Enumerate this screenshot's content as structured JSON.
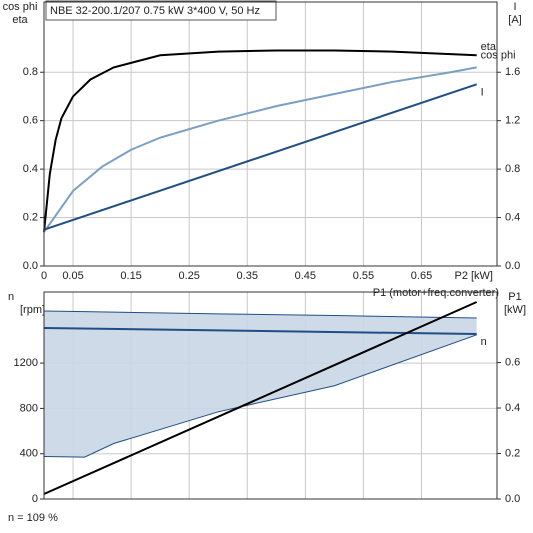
{
  "chart_data": [
    {
      "type": "line",
      "title": "NBE 32-200.1/207   0.75 kW   3*400 V, 50 Hz",
      "ylabel": [
        "cos phi",
        "eta"
      ],
      "y2label": [
        "I",
        "[A]"
      ],
      "xlabel": "P2 [kW]",
      "xlim": [
        0,
        0.78
      ],
      "xticks": [
        0,
        0.05,
        0.15,
        0.25,
        0.35,
        0.45,
        0.55,
        0.65
      ],
      "ylim": [
        0,
        1.09
      ],
      "yticks": [
        {
          "value": 0,
          "label": "0.0"
        },
        0.2,
        0.4,
        0.6,
        0.8
      ],
      "y2lim": [
        0,
        2.18
      ],
      "y2ticks": [
        {
          "value": 0,
          "label": "0.0"
        },
        0.4,
        0.8,
        1.2,
        1.6
      ],
      "grid": true,
      "series": [
        {
          "name": "eta",
          "color": "#000000",
          "x": [
            0,
            0.01,
            0.02,
            0.03,
            0.05,
            0.08,
            0.12,
            0.2,
            0.3,
            0.4,
            0.5,
            0.6,
            0.7,
            0.745
          ],
          "values": [
            0.14,
            0.38,
            0.52,
            0.61,
            0.7,
            0.77,
            0.82,
            0.87,
            0.885,
            0.89,
            0.89,
            0.885,
            0.875,
            0.87
          ]
        },
        {
          "name": "cos phi",
          "color": "#7a9fc4",
          "x": [
            0,
            0.05,
            0.1,
            0.15,
            0.2,
            0.3,
            0.4,
            0.5,
            0.6,
            0.7,
            0.745
          ],
          "values": [
            0.14,
            0.31,
            0.41,
            0.48,
            0.53,
            0.6,
            0.66,
            0.71,
            0.76,
            0.8,
            0.82
          ]
        },
        {
          "name": "I",
          "color": "#1f4e85",
          "axis": "y2",
          "x": [
            0,
            0.745
          ],
          "values": [
            0.3,
            1.5
          ]
        }
      ]
    },
    {
      "type": "line",
      "ylabel": [
        "n",
        "[rpm]"
      ],
      "y2label": [
        "P1",
        "[kW]"
      ],
      "xlim": [
        0,
        0.78
      ],
      "ylim": [
        0,
        1828
      ],
      "yticks": [
        0,
        400,
        800,
        1200
      ],
      "y2lim": [
        0,
        0.91
      ],
      "y2ticks": [
        {
          "value": 0,
          "label": "0.0"
        },
        0.2,
        0.4,
        0.6
      ],
      "grid": true,
      "bands": [
        {
          "color": "#c9d6e6",
          "edge": "#1f4e85",
          "x": [
            0,
            0.07,
            0.12,
            0.3,
            0.5,
            0.745
          ],
          "upper": [
            1660,
            1655,
            1650,
            1635,
            1620,
            1598
          ],
          "lower": [
            375,
            370,
            490,
            770,
            1000,
            1450
          ]
        }
      ],
      "series": [
        {
          "name": "n",
          "color": "#1f4e85",
          "x": [
            0,
            0.745
          ],
          "values": [
            1510,
            1457
          ]
        },
        {
          "name": "P1 (motor+freq.converter)",
          "color": "#000000",
          "axis": "y2",
          "x": [
            0,
            0.745
          ],
          "values": [
            0.022,
            0.866
          ]
        }
      ],
      "note": "n = 109 %"
    }
  ]
}
